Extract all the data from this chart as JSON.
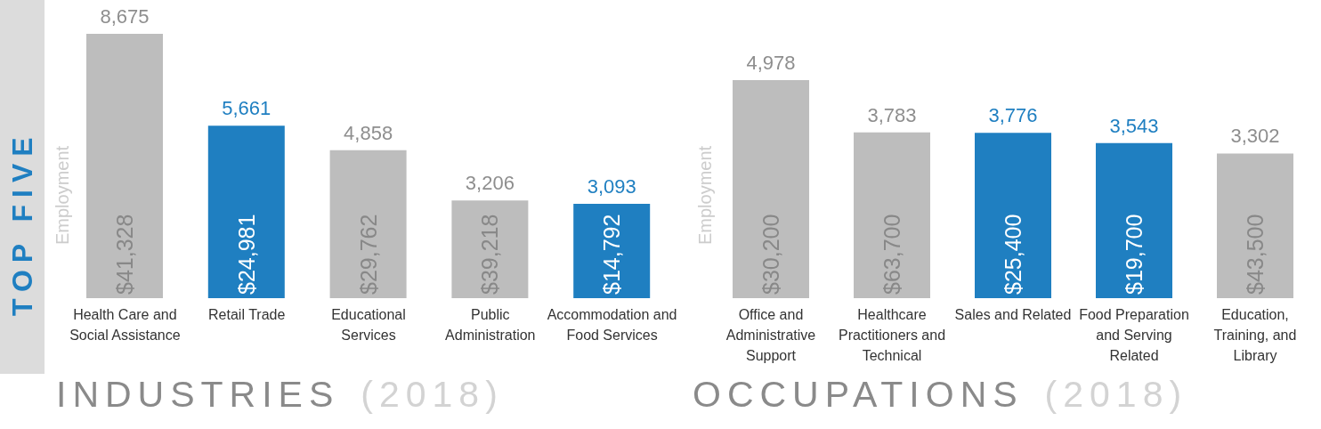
{
  "chart_data": [
    {
      "type": "bar",
      "title": "INDUSTRIES",
      "subtitle": "(2018)",
      "ylabel": "Employment",
      "categories": [
        "Health Care and Social Assistance",
        "Retail Trade",
        "Educational Services",
        "Public Administration",
        "Accommodation and Food Services"
      ],
      "values": [
        8675,
        5661,
        4858,
        3206,
        3093
      ],
      "colors": [
        "#bdbdbd",
        "#1f7fc1",
        "#bdbdbd",
        "#bdbdbd",
        "#1f7fc1"
      ],
      "value_labels": [
        "8,675",
        "5,661",
        "4,858",
        "3,206",
        "3,093"
      ],
      "legend": false,
      "grid": false,
      "annotations": [
        "$41,328",
        "$24,981",
        "$29,762",
        "$39,218",
        "$14,792",
        "TOP FIVE"
      ]
    },
    {
      "type": "bar",
      "title": "OCCUPATIONS",
      "subtitle": "(2018)",
      "ylabel": "Employment",
      "categories": [
        "Office and Administrative Support",
        "Healthcare Practitioners and Technical",
        "Sales and Related",
        "Food Preparation and Serving Related",
        "Education, Training, and Library"
      ],
      "values": [
        4978,
        3783,
        3776,
        3543,
        3302
      ],
      "colors": [
        "#bdbdbd",
        "#bdbdbd",
        "#1f7fc1",
        "#1f7fc1",
        "#bdbdbd"
      ],
      "value_labels": [
        "4,978",
        "3,783",
        "3,776",
        "3,543",
        "3,302"
      ],
      "legend": false,
      "grid": false,
      "annotations": [
        "$30,200",
        "$63,700",
        "$25,400",
        "$19,700",
        "$43,500"
      ]
    }
  ]
}
